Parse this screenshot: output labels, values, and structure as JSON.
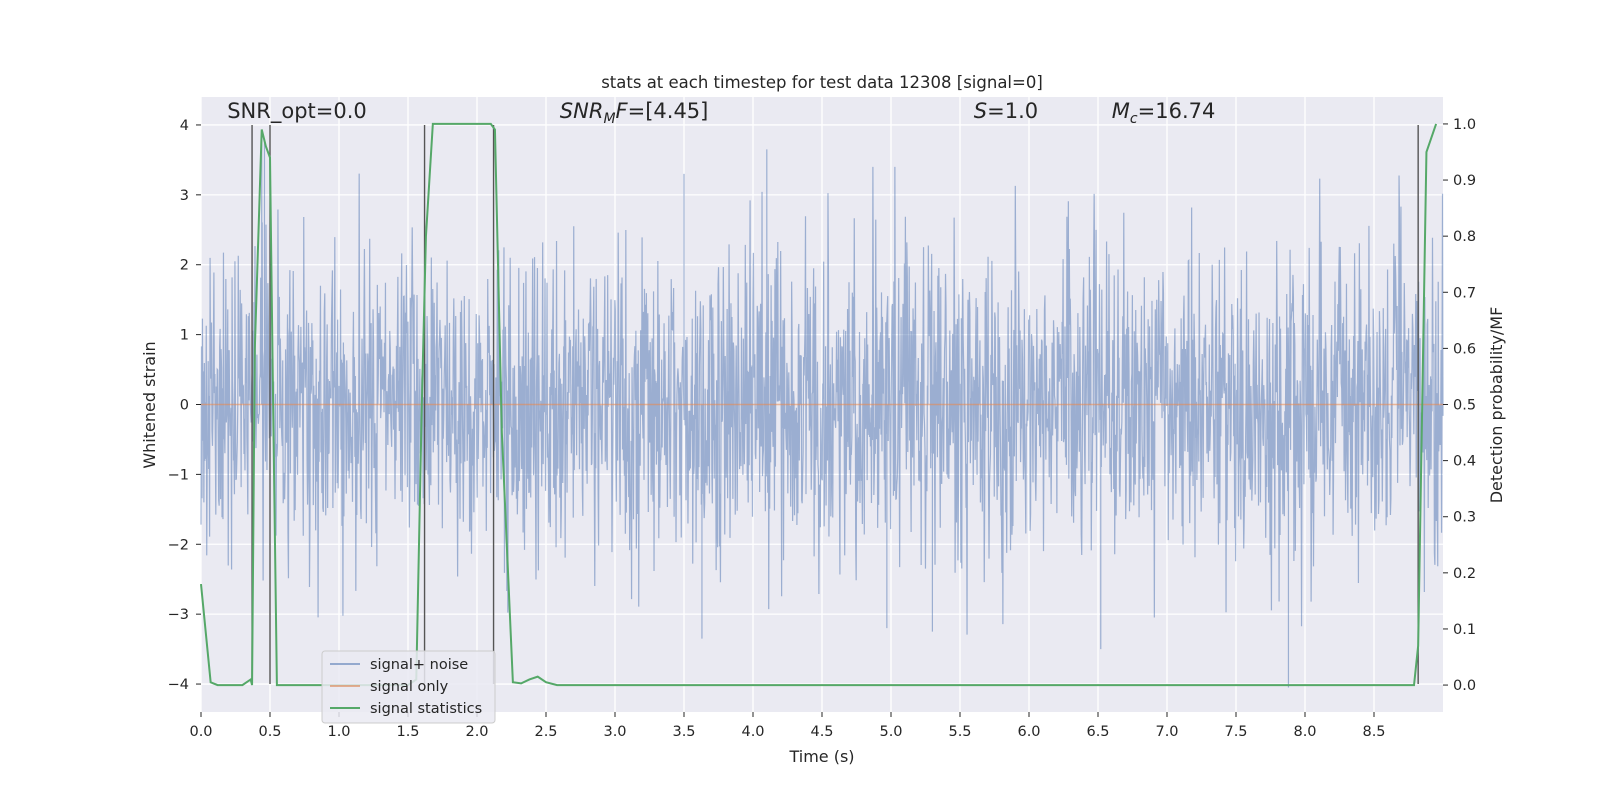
{
  "chart_data": {
    "type": "line",
    "title": "stats at each timestep for test data 12308 [signal=0]",
    "xlabel": "Time (s)",
    "ylabel": "Whitened strain",
    "y2label": "Detection probability/MF",
    "xlim": [
      0,
      9.0
    ],
    "ylim": [
      -4.4,
      4.4
    ],
    "y2lim": [
      -0.048,
      1.048
    ],
    "x_ticks": [
      0.0,
      0.5,
      1.0,
      1.5,
      2.0,
      2.5,
      3.0,
      3.5,
      4.0,
      4.5,
      5.0,
      5.5,
      6.0,
      6.5,
      7.0,
      7.5,
      8.0,
      8.5
    ],
    "x_tick_labels": [
      "0.0",
      "0.5",
      "1.0",
      "1.5",
      "2.0",
      "2.5",
      "3.0",
      "3.5",
      "4.0",
      "4.5",
      "5.0",
      "5.5",
      "6.0",
      "6.5",
      "7.0",
      "7.5",
      "8.0",
      "8.5"
    ],
    "y_ticks": [
      4,
      3,
      2,
      1,
      0,
      -1,
      -2,
      -3,
      -4
    ],
    "y_tick_labels": [
      "4",
      "3",
      "2",
      "1",
      "0",
      "−1",
      "−2",
      "−3",
      "−4"
    ],
    "y2_ticks": [
      1.0,
      0.9,
      0.8,
      0.7,
      0.6,
      0.5,
      0.4,
      0.3,
      0.2,
      0.1,
      0.0
    ],
    "y2_tick_labels": [
      "1.0",
      "0.9",
      "0.8",
      "0.7",
      "0.6",
      "0.5",
      "0.4",
      "0.3",
      "0.2",
      "0.1",
      "0.0"
    ],
    "grid": true,
    "legend_position": "lower-left",
    "annotations": [
      {
        "kind": "plain",
        "text": "SNR_opt=0.0",
        "x": 0.19,
        "y": 4.1
      },
      {
        "kind": "snr_mf",
        "main": "SNR",
        "sub": "M",
        "rest": "F=[4.45]",
        "x": 2.6,
        "y": 4.1
      },
      {
        "kind": "italic_var",
        "main": "S",
        "sub": "",
        "rest": "=1.0",
        "x": 5.6,
        "y": 4.1
      },
      {
        "kind": "italic_var",
        "main": "M",
        "sub": "c",
        "rest": "=16.74",
        "x": 6.6,
        "y": 4.1
      }
    ],
    "vertical_lines_x": [
      0.37,
      0.5,
      1.62,
      2.12,
      8.82
    ],
    "series": [
      {
        "name": "signal+ noise",
        "color": "#4c72b0",
        "axis": "left",
        "values_summary": "whitened strain noise trace; sampled in script within approximately [-4.0, 3.7] with visible spikes",
        "spikes": [
          {
            "x": 0.44,
            "y": 3.9
          },
          {
            "x": 0.46,
            "y": 3.8
          },
          {
            "x": 3.5,
            "y": 3.3
          },
          {
            "x": 4.1,
            "y": 3.65
          },
          {
            "x": 7.88,
            "y": -4.05
          },
          {
            "x": 6.52,
            "y": -3.5
          },
          {
            "x": 3.63,
            "y": -3.35
          },
          {
            "x": 4.97,
            "y": -3.2
          },
          {
            "x": 5.3,
            "y": -3.25
          }
        ]
      },
      {
        "name": "signal only",
        "color": "#dd8452",
        "axis": "left",
        "x": [
          0,
          9.0
        ],
        "y": [
          0,
          0
        ]
      },
      {
        "name": "signal statistics",
        "color": "#55a868",
        "axis": "right",
        "x": [
          0.0,
          0.07,
          0.12,
          0.3,
          0.36,
          0.37,
          0.39,
          0.44,
          0.47,
          0.5,
          0.52,
          0.55,
          0.6,
          1.5,
          1.56,
          1.6,
          1.63,
          1.68,
          2.1,
          2.13,
          2.18,
          2.26,
          2.32,
          2.38,
          2.44,
          2.5,
          2.58,
          8.79,
          8.82,
          8.88,
          8.95
        ],
        "y": [
          0.18,
          0.005,
          0.0,
          0.0,
          0.01,
          0.0,
          0.6,
          0.99,
          0.96,
          0.94,
          0.55,
          0.0,
          0.0,
          0.0,
          0.01,
          0.5,
          0.8,
          1.0,
          1.0,
          0.99,
          0.45,
          0.005,
          0.003,
          0.01,
          0.015,
          0.005,
          0.0,
          0.0,
          0.07,
          0.95,
          1.0
        ]
      }
    ]
  }
}
